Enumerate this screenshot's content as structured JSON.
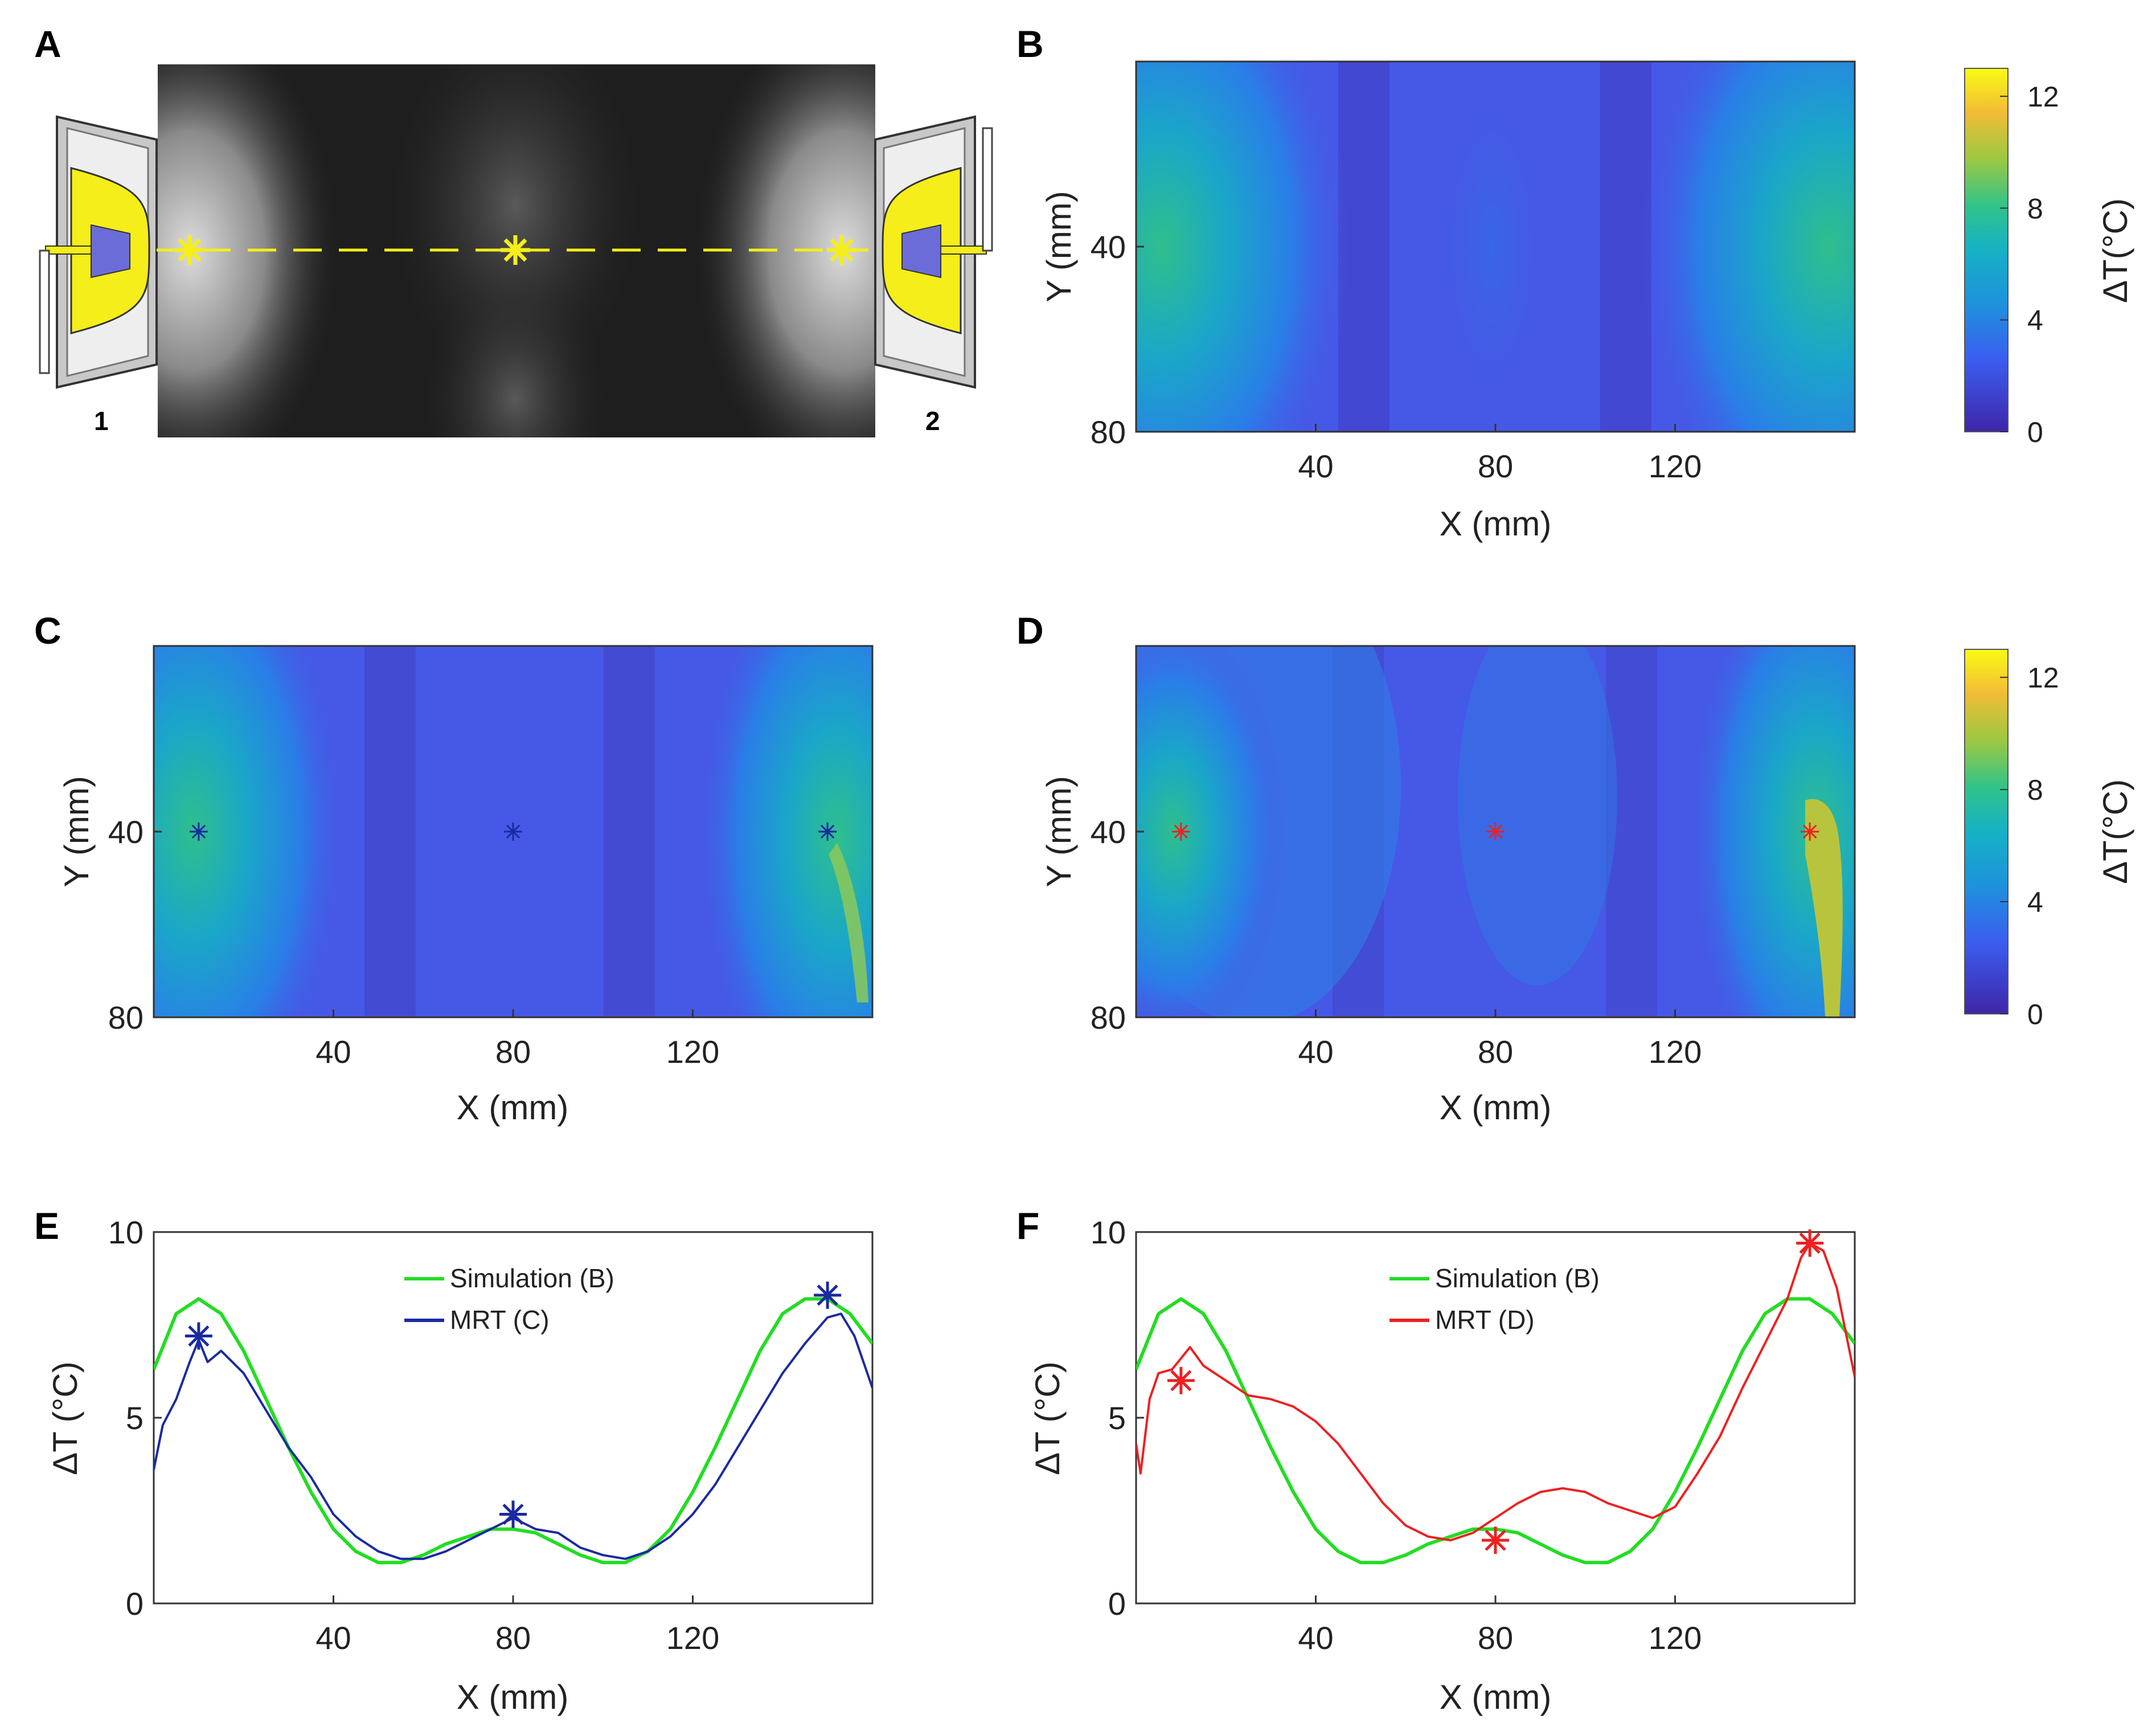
{
  "panels": {
    "A": {
      "label": "A",
      "transducer_1": "1",
      "transducer_2": "2"
    },
    "B": {
      "label": "B"
    },
    "C": {
      "label": "C"
    },
    "D": {
      "label": "D"
    },
    "E": {
      "label": "E"
    },
    "F": {
      "label": "F"
    }
  },
  "axes": {
    "x_label": "X (mm)",
    "y_label": "Y (mm)",
    "dt_label": "ΔT (°C)",
    "colorbar_label": "ΔT(°C)"
  },
  "colors": {
    "simulation": "#22dd22",
    "mrt_c": "#1a2aa0",
    "mrt_d": "#ee2020",
    "transducer_yellow": "#f5ee1a",
    "focus_marker": "#f5ee1a"
  },
  "chart_data": [
    {
      "id": "B",
      "type": "heatmap",
      "title": "",
      "xlabel": "X (mm)",
      "ylabel": "Y (mm)",
      "xlim": [
        0,
        160
      ],
      "ylim": [
        80,
        0
      ],
      "xticks": [
        40,
        80,
        120
      ],
      "yticks": [
        40,
        80
      ],
      "colorbar": {
        "label": "ΔT(°C)",
        "range": [
          0,
          13
        ],
        "ticks": [
          0,
          4,
          8,
          12
        ]
      },
      "colormap": "parula",
      "peak_values": {
        "left_focus": 8.2,
        "center": 2.0,
        "right_focus": 8.2
      }
    },
    {
      "id": "C",
      "type": "heatmap",
      "title": "",
      "xlabel": "X (mm)",
      "ylabel": "Y (mm)",
      "xlim": [
        0,
        160
      ],
      "ylim": [
        80,
        0
      ],
      "xticks": [
        40,
        80,
        120
      ],
      "yticks": [
        40,
        80
      ],
      "markers": [
        {
          "x": 10,
          "y": 40
        },
        {
          "x": 80,
          "y": 40
        },
        {
          "x": 150,
          "y": 40
        }
      ],
      "marker_color": "blue"
    },
    {
      "id": "D",
      "type": "heatmap",
      "title": "",
      "xlabel": "X (mm)",
      "ylabel": "Y (mm)",
      "xlim": [
        0,
        160
      ],
      "ylim": [
        80,
        0
      ],
      "xticks": [
        40,
        80,
        120
      ],
      "yticks": [
        40,
        80
      ],
      "colorbar": {
        "label": "ΔT(°C)",
        "range": [
          0,
          13
        ],
        "ticks": [
          0,
          4,
          8,
          12
        ]
      },
      "markers": [
        {
          "x": 10,
          "y": 40
        },
        {
          "x": 80,
          "y": 40
        },
        {
          "x": 150,
          "y": 40
        }
      ],
      "marker_color": "red"
    },
    {
      "id": "E",
      "type": "line",
      "title": "",
      "xlabel": "X (mm)",
      "ylabel": "ΔT (°C)",
      "xlim": [
        0,
        160
      ],
      "ylim": [
        0,
        10
      ],
      "xticks": [
        40,
        80,
        120
      ],
      "yticks": [
        0,
        5,
        10
      ],
      "legend": {
        "placement": "top-center"
      },
      "series": [
        {
          "name": "Simulation (B)",
          "color": "#22dd22",
          "x": [
            0,
            5,
            10,
            15,
            20,
            25,
            30,
            35,
            40,
            45,
            50,
            55,
            60,
            65,
            70,
            75,
            80,
            85,
            90,
            95,
            100,
            105,
            110,
            115,
            120,
            125,
            130,
            135,
            140,
            145,
            150,
            155,
            160
          ],
          "y": [
            6.3,
            7.8,
            8.2,
            7.8,
            6.8,
            5.5,
            4.2,
            3.0,
            2.0,
            1.4,
            1.1,
            1.1,
            1.3,
            1.6,
            1.8,
            2.0,
            2.0,
            1.9,
            1.6,
            1.3,
            1.1,
            1.1,
            1.4,
            2.0,
            3.0,
            4.2,
            5.5,
            6.8,
            7.8,
            8.2,
            8.2,
            7.8,
            7.0
          ]
        },
        {
          "name": "MRT (C)",
          "color": "#1a2aa0",
          "x": [
            0,
            2,
            5,
            8,
            10,
            12,
            15,
            20,
            25,
            30,
            35,
            40,
            45,
            50,
            55,
            60,
            65,
            70,
            75,
            80,
            85,
            90,
            95,
            100,
            105,
            110,
            115,
            120,
            125,
            130,
            135,
            140,
            145,
            150,
            153,
            156,
            160
          ],
          "y": [
            3.6,
            4.8,
            5.5,
            6.5,
            7.1,
            6.5,
            6.8,
            6.2,
            5.2,
            4.2,
            3.4,
            2.4,
            1.8,
            1.4,
            1.2,
            1.2,
            1.4,
            1.7,
            2.0,
            2.3,
            2.0,
            1.9,
            1.5,
            1.3,
            1.2,
            1.4,
            1.8,
            2.4,
            3.2,
            4.2,
            5.2,
            6.2,
            7.0,
            7.7,
            7.8,
            7.2,
            5.8
          ]
        }
      ],
      "markers": [
        {
          "x": 10,
          "y": 7.2
        },
        {
          "x": 80,
          "y": 2.4
        },
        {
          "x": 150,
          "y": 8.3
        }
      ]
    },
    {
      "id": "F",
      "type": "line",
      "title": "",
      "xlabel": "X (mm)",
      "ylabel": "ΔT (°C)",
      "xlim": [
        0,
        160
      ],
      "ylim": [
        0,
        10
      ],
      "xticks": [
        40,
        80,
        120
      ],
      "yticks": [
        0,
        5,
        10
      ],
      "legend": {
        "placement": "top-center"
      },
      "series": [
        {
          "name": "Simulation (B)",
          "color": "#22dd22",
          "x": [
            0,
            5,
            10,
            15,
            20,
            25,
            30,
            35,
            40,
            45,
            50,
            55,
            60,
            65,
            70,
            75,
            80,
            85,
            90,
            95,
            100,
            105,
            110,
            115,
            120,
            125,
            130,
            135,
            140,
            145,
            150,
            155,
            160
          ],
          "y": [
            6.3,
            7.8,
            8.2,
            7.8,
            6.8,
            5.5,
            4.2,
            3.0,
            2.0,
            1.4,
            1.1,
            1.1,
            1.3,
            1.6,
            1.8,
            2.0,
            2.0,
            1.9,
            1.6,
            1.3,
            1.1,
            1.1,
            1.4,
            2.0,
            3.0,
            4.2,
            5.5,
            6.8,
            7.8,
            8.2,
            8.2,
            7.8,
            7.0
          ]
        },
        {
          "name": "MRT (D)",
          "color": "#ee2020",
          "x": [
            0,
            1,
            3,
            5,
            8,
            10,
            12,
            15,
            20,
            25,
            30,
            35,
            40,
            45,
            50,
            55,
            60,
            65,
            70,
            75,
            80,
            85,
            90,
            95,
            100,
            105,
            110,
            115,
            120,
            125,
            130,
            135,
            140,
            145,
            148,
            150,
            153,
            156,
            160
          ],
          "y": [
            4.3,
            3.5,
            5.5,
            6.2,
            6.3,
            6.6,
            6.9,
            6.4,
            6.0,
            5.6,
            5.5,
            5.3,
            4.9,
            4.3,
            3.5,
            2.7,
            2.1,
            1.8,
            1.7,
            1.9,
            2.3,
            2.7,
            3.0,
            3.1,
            3.0,
            2.7,
            2.5,
            2.3,
            2.6,
            3.5,
            4.5,
            5.8,
            7.0,
            8.2,
            9.3,
            9.7,
            9.5,
            8.5,
            6.1
          ]
        }
      ],
      "markers": [
        {
          "x": 10,
          "y": 6.0
        },
        {
          "x": 80,
          "y": 1.7
        },
        {
          "x": 150,
          "y": 9.7
        }
      ]
    }
  ]
}
